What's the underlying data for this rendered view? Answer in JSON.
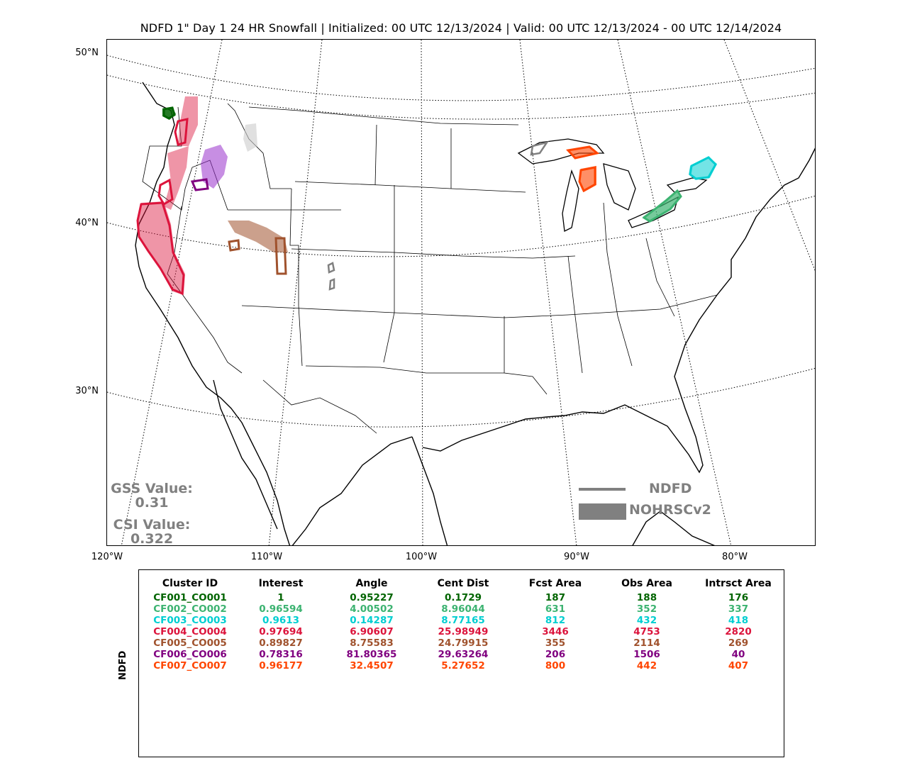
{
  "title": "NDFD 1\" Day 1 24 HR Snowfall | Initialized: 00 UTC 12/13/2024 | Valid: 00 UTC 12/13/2024 - 00 UTC 12/14/2024",
  "lat_labels": [
    "50°N",
    "40°N",
    "30°N"
  ],
  "lon_labels": [
    "120°W",
    "110°W",
    "100°W",
    "90°W",
    "80°W"
  ],
  "stats": {
    "gss_label": "GSS Value:",
    "gss_value": "0.31",
    "csi_label": "CSI Value:",
    "csi_value": "0.322"
  },
  "legend": {
    "forecast_label": "NDFD",
    "observed_label": "NOHRSCv2",
    "color": "#808080"
  },
  "table": {
    "side_label": "NDFD",
    "headers": [
      "Cluster ID",
      "Interest",
      "Angle",
      "Cent Dist",
      "Fcst Area",
      "Obs Area",
      "Intrsct Area"
    ],
    "rows": [
      {
        "color": "#006400",
        "cells": [
          "CF001_CO001",
          "1",
          "0.95227",
          "0.1729",
          "187",
          "188",
          "176"
        ]
      },
      {
        "color": "#3cb371",
        "cells": [
          "CF002_CO002",
          "0.96594",
          "4.00502",
          "8.96044",
          "631",
          "352",
          "337"
        ]
      },
      {
        "color": "#00ced1",
        "cells": [
          "CF003_CO003",
          "0.9613",
          "0.14287",
          "8.77165",
          "812",
          "432",
          "418"
        ]
      },
      {
        "color": "#dc143c",
        "cells": [
          "CF004_CO004",
          "0.97694",
          "6.90607",
          "25.98949",
          "3446",
          "4753",
          "2820"
        ]
      },
      {
        "color": "#a0522d",
        "cells": [
          "CF005_CO005",
          "0.89827",
          "8.75583",
          "24.79915",
          "355",
          "2114",
          "269"
        ]
      },
      {
        "color": "#800080",
        "cells": [
          "CF006_CO006",
          "0.78316",
          "81.80365",
          "29.63264",
          "206",
          "1506",
          "40"
        ]
      },
      {
        "color": "#ff4500",
        "cells": [
          "CF007_CO007",
          "0.96177",
          "32.4507",
          "5.27652",
          "800",
          "442",
          "407"
        ]
      }
    ]
  }
}
